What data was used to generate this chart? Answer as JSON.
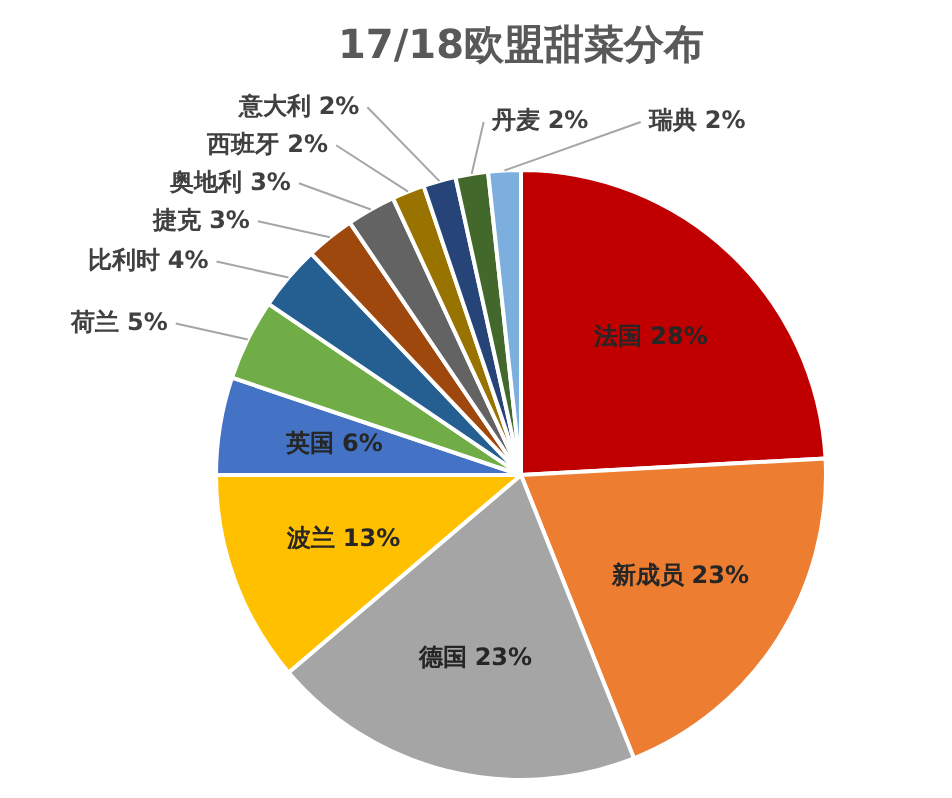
{
  "chart_data": {
    "type": "pie",
    "title": "17/18欧盟甜菜分布",
    "categories": [
      "法国",
      "新成员",
      "德国",
      "波兰",
      "英国",
      "荷兰",
      "比利时",
      "捷克",
      "奥地利",
      "西班牙",
      "意大利",
      "丹麦",
      "瑞典"
    ],
    "values": [
      28,
      23,
      23,
      13,
      6,
      5,
      4,
      3,
      3,
      2,
      2,
      2,
      2
    ],
    "colors": [
      "#c00000",
      "#ed7d31",
      "#a5a5a5",
      "#ffc000",
      "#4472c4",
      "#70ad47",
      "#255e91",
      "#9e480e",
      "#636363",
      "#997300",
      "#264478",
      "#43682b",
      "#7cafdd"
    ],
    "value_labels": [
      "28%",
      "23%",
      "23%",
      "13%",
      "6%",
      "5%",
      "4%",
      "3%",
      "3%",
      "2%",
      "2%",
      "2%",
      "2%"
    ],
    "legend": false
  }
}
